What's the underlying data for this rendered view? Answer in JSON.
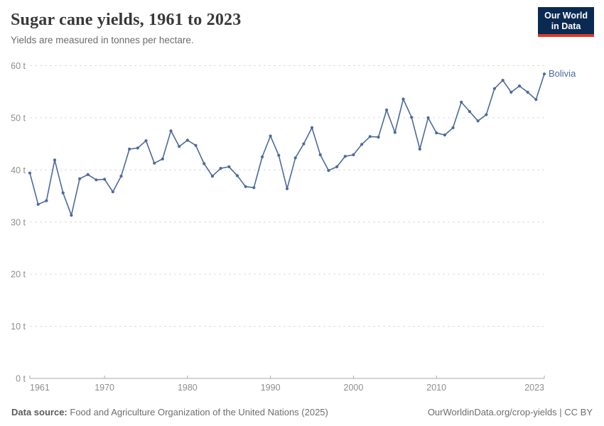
{
  "header": {
    "title": "Sugar cane yields, 1961 to 2023",
    "subtitle": "Yields are measured in tonnes per hectare.",
    "logo": {
      "line1": "Our World",
      "line2": "in Data"
    }
  },
  "chart_data": {
    "type": "line",
    "title": "Sugar cane yields, 1961 to 2023",
    "ylabel": "tonnes per hectare",
    "xlabel": "",
    "ylim": [
      0,
      60
    ],
    "yticks": [
      0,
      10,
      20,
      30,
      40,
      50,
      60
    ],
    "ytick_suffix": " t",
    "xticks": [
      1961,
      1970,
      1980,
      1990,
      2000,
      2010,
      2023
    ],
    "grid": "horizontal-dashed",
    "legend": "end-of-line-label",
    "colors": {
      "line": "#4C6A9C",
      "grid": "#dcdcdc",
      "axis": "#a8a8a8",
      "tick_label": "#8e8e8e"
    },
    "series": [
      {
        "name": "Bolivia",
        "color": "#4C6A9C",
        "x": [
          1961,
          1962,
          1963,
          1964,
          1965,
          1966,
          1967,
          1968,
          1969,
          1970,
          1971,
          1972,
          1973,
          1974,
          1975,
          1976,
          1977,
          1978,
          1979,
          1980,
          1981,
          1982,
          1983,
          1984,
          1985,
          1986,
          1987,
          1988,
          1989,
          1990,
          1991,
          1992,
          1993,
          1994,
          1995,
          1996,
          1997,
          1998,
          1999,
          2000,
          2001,
          2002,
          2003,
          2004,
          2005,
          2006,
          2007,
          2008,
          2009,
          2010,
          2011,
          2012,
          2013,
          2014,
          2015,
          2016,
          2017,
          2018,
          2019,
          2020,
          2021,
          2022,
          2023
        ],
        "values": [
          39.4,
          33.4,
          34.1,
          41.9,
          35.6,
          31.3,
          38.3,
          39.1,
          38.1,
          38.2,
          35.8,
          38.8,
          44.0,
          44.2,
          45.6,
          41.3,
          42.1,
          47.5,
          44.5,
          45.7,
          44.7,
          41.2,
          38.8,
          40.3,
          40.6,
          38.9,
          36.8,
          36.6,
          42.5,
          46.5,
          42.8,
          36.4,
          42.3,
          45.0,
          48.1,
          42.9,
          39.9,
          40.6,
          42.6,
          42.9,
          44.9,
          46.4,
          46.3,
          51.5,
          47.2,
          53.6,
          50.1,
          44.0,
          50.0,
          47.1,
          46.7,
          48.1,
          53.0,
          51.2,
          49.4,
          50.6,
          55.6,
          57.2,
          54.9,
          56.1,
          54.9,
          53.5,
          58.4
        ]
      }
    ]
  },
  "footer": {
    "source_label": "Data source:",
    "source_text": "Food and Agriculture Organization of the United Nations (2025)",
    "link": "OurWorldinData.org/crop-yields",
    "separator": " | ",
    "license": "CC BY"
  }
}
